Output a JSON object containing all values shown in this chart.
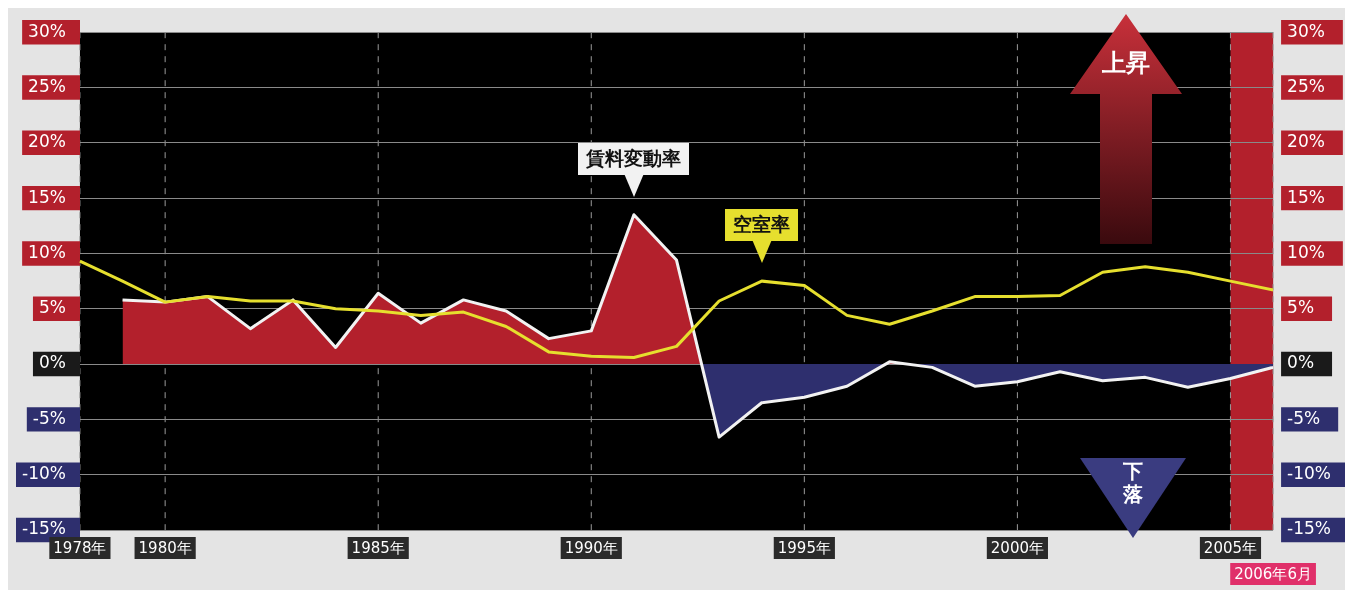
{
  "chart_data": {
    "type": "line",
    "categories": [
      "1978年",
      null,
      "1980年",
      null,
      null,
      null,
      null,
      "1985年",
      null,
      null,
      null,
      null,
      "1990年",
      null,
      null,
      null,
      null,
      "1995年",
      null,
      null,
      null,
      null,
      "2000年",
      null,
      null,
      null,
      null,
      "2005年",
      "2006年6月"
    ],
    "series": [
      {
        "name": "賃料変動率",
        "type": "area",
        "color": "#b3202c",
        "values": [
          null,
          5.8,
          5.6,
          6.1,
          3.2,
          5.8,
          1.5,
          6.4,
          3.7,
          5.8,
          4.8,
          2.3,
          3.0,
          13.5,
          9.4,
          -6.6,
          -3.5,
          -3.0,
          -2.0,
          0.2,
          -0.3,
          -2.0,
          -1.6,
          -0.7,
          -1.5,
          -1.2,
          -2.1,
          -1.3,
          -0.3
        ]
      },
      {
        "name": "空室率",
        "type": "line",
        "color": "#e6df2e",
        "values": [
          9.3,
          7.5,
          5.6,
          6.1,
          5.7,
          5.7,
          5.0,
          4.8,
          4.4,
          4.7,
          3.4,
          1.1,
          0.7,
          0.6,
          1.6,
          5.7,
          7.5,
          7.1,
          4.4,
          3.6,
          4.8,
          6.1,
          6.1,
          6.2,
          8.3,
          8.8,
          8.3,
          7.5,
          6.7
        ]
      }
    ],
    "ylim": [
      -15,
      30
    ],
    "yticks": [
      {
        "value": -15,
        "label": "-15%"
      },
      {
        "value": -10,
        "label": "-10%"
      },
      {
        "value": -5,
        "label": "-5%"
      },
      {
        "value": 0,
        "label": "0%"
      },
      {
        "value": 5,
        "label": "5%"
      },
      {
        "value": 10,
        "label": "10%"
      },
      {
        "value": 15,
        "label": "15%"
      },
      {
        "value": 20,
        "label": "20%"
      },
      {
        "value": 25,
        "label": "25%"
      },
      {
        "value": 30,
        "label": "30%"
      }
    ],
    "y2lim": [
      -15,
      30
    ],
    "y2ticks": [
      {
        "value": -15,
        "label": "-15%"
      },
      {
        "value": -10,
        "label": "-10%"
      },
      {
        "value": -5,
        "label": "-5%"
      },
      {
        "value": 0,
        "label": "0%"
      },
      {
        "value": 5,
        "label": "5%"
      },
      {
        "value": 10,
        "label": "10%"
      },
      {
        "value": 15,
        "label": "15%"
      },
      {
        "value": 20,
        "label": "20%"
      },
      {
        "value": 25,
        "label": "25%"
      },
      {
        "value": 30,
        "label": "30%"
      }
    ],
    "bands": [
      {
        "axis": "x",
        "from": "2005年",
        "to": "2006年6月",
        "color": "#b3202c"
      }
    ],
    "annotations": [
      "上昇",
      "下落"
    ],
    "grid": true,
    "legend": false
  }
}
